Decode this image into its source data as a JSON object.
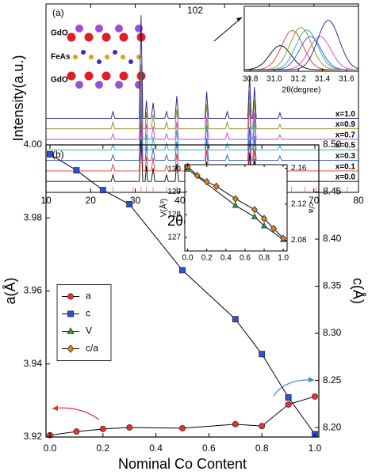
{
  "chart_data": [
    {
      "type": "line",
      "panel_label": "(a)",
      "x_label": "2θ(degree)",
      "y_label": "Intensity(a.u.)",
      "annotations": [
        "102"
      ],
      "structure_labels": [
        "GdO",
        "FeAs",
        "GdO"
      ],
      "xlim": [
        10,
        80
      ],
      "xticks": [
        10,
        20,
        30,
        40,
        50,
        60,
        70,
        80
      ],
      "x": [
        10,
        24.6,
        25,
        25.4,
        30.9,
        31.3,
        31.7,
        32.2,
        32.5,
        32.8,
        33.6,
        34,
        34.4,
        36.6,
        37,
        37.4,
        38.9,
        39.3,
        39.7,
        45.6,
        46,
        46.4,
        50.2,
        50.6,
        51,
        55.2,
        55.6,
        56,
        56.3,
        56.7,
        57.1,
        62,
        62.4,
        62.8,
        80
      ],
      "series": [
        {
          "name": "x=0.0",
          "color": "#000000",
          "values": [
            2,
            2,
            8,
            2,
            2,
            40,
            2,
            2,
            16,
            2,
            2,
            14,
            2,
            2,
            8,
            2,
            2,
            18,
            2,
            2,
            20,
            2,
            2,
            8,
            2,
            2,
            28,
            2,
            2,
            22,
            2,
            2,
            6,
            2,
            2
          ]
        },
        {
          "name": "x=0.1",
          "color": "#e8322e",
          "values": [
            2,
            2,
            8,
            2,
            2,
            45,
            2,
            2,
            15,
            2,
            2,
            14,
            2,
            2,
            7,
            2,
            2,
            18,
            2,
            2,
            21,
            2,
            2,
            8,
            2,
            2,
            30,
            2,
            2,
            22,
            2,
            2,
            6,
            2,
            2
          ]
        },
        {
          "name": "x=0.3",
          "color": "#2e4fd8",
          "values": [
            2,
            2,
            7,
            2,
            2,
            50,
            2,
            2,
            15,
            2,
            2,
            13,
            2,
            2,
            7,
            2,
            2,
            19,
            2,
            2,
            22,
            2,
            2,
            7,
            2,
            2,
            32,
            2,
            2,
            24,
            2,
            2,
            6,
            2,
            2
          ]
        },
        {
          "name": "x=0.5",
          "color": "#1aa8a8",
          "values": [
            2,
            2,
            7,
            2,
            2,
            50,
            2,
            2,
            16,
            2,
            2,
            14,
            2,
            2,
            8,
            2,
            2,
            20,
            2,
            2,
            24,
            2,
            2,
            8,
            2,
            2,
            45,
            2,
            2,
            30,
            2,
            2,
            6,
            2,
            2
          ]
        },
        {
          "name": "x=0.7",
          "color": "#d040d0",
          "values": [
            2,
            2,
            7,
            2,
            2,
            55,
            2,
            2,
            16,
            2,
            2,
            14,
            2,
            2,
            7,
            2,
            2,
            18,
            2,
            2,
            22,
            2,
            2,
            8,
            2,
            2,
            34,
            2,
            2,
            26,
            2,
            2,
            6,
            2,
            2
          ]
        },
        {
          "name": "x=0.9",
          "color": "#8a8a1a",
          "values": [
            2,
            2,
            8,
            2,
            2,
            60,
            2,
            2,
            17,
            2,
            2,
            15,
            2,
            2,
            8,
            2,
            2,
            20,
            2,
            2,
            24,
            2,
            2,
            8,
            2,
            2,
            36,
            2,
            2,
            28,
            2,
            2,
            6,
            2,
            2
          ]
        },
        {
          "name": "x=1.0",
          "color": "#1a1a8a",
          "values": [
            2,
            2,
            8,
            2,
            2,
            95,
            2,
            2,
            18,
            2,
            2,
            16,
            2,
            2,
            8,
            2,
            2,
            22,
            2,
            2,
            26,
            2,
            2,
            8,
            2,
            2,
            40,
            2,
            2,
            30,
            2,
            2,
            7,
            2,
            2
          ]
        }
      ],
      "reference_peaks": [
        25,
        29.5,
        31.3,
        32.5,
        34,
        37,
        39.3,
        41.5,
        46,
        48,
        50.6,
        52,
        55.6,
        56.7,
        58.5,
        62.4,
        65,
        68,
        70.5,
        73,
        75,
        77.5
      ],
      "reference_color": "#f08080"
    },
    {
      "type": "peak-profile",
      "x_label": "2θ(degree)",
      "xlim": [
        30.75,
        31.7
      ],
      "xticks": [
        30.8,
        {
          "value": 31,
          "label": "31.0"
        },
        31.2,
        31.4,
        31.6
      ],
      "peaks": [
        {
          "color": "#000000",
          "center": 31.05,
          "height": 0.4
        },
        {
          "color": "#e8322e",
          "center": 31.15,
          "height": 0.65
        },
        {
          "color": "#2e4fd8",
          "center": 31.3,
          "height": 0.55
        },
        {
          "color": "#1aa8a8",
          "center": 31.27,
          "height": 0.66
        },
        {
          "color": "#d040d0",
          "center": 31.38,
          "height": 0.55
        },
        {
          "color": "#8a8a1a",
          "center": 31.22,
          "height": 0.7
        },
        {
          "color": "#1a1a8a",
          "center": 31.45,
          "height": 0.82
        }
      ]
    },
    {
      "type": "line",
      "panel_label": "(b)",
      "x_label": "Nominal Co Content",
      "y_label": "a(Å)",
      "y2_label": "c(Å)",
      "legend": "center left",
      "line_color": "#000000",
      "xlim": [
        -0.015,
        1.015
      ],
      "xticks": [
        {
          "value": 0,
          "label": "0.0"
        },
        0.2,
        0.4,
        0.6,
        0.8,
        {
          "value": 1,
          "label": "1.0"
        }
      ],
      "ylim": [
        3.92,
        4.0
      ],
      "yticks": [
        3.92,
        3.94,
        3.96,
        3.98,
        {
          "value": 4,
          "label": "4.00"
        }
      ],
      "y2lim": [
        8.19,
        8.5
      ],
      "y2ticks": [
        {
          "value": 8.2,
          "label": "8.20"
        },
        8.25,
        {
          "value": 8.3,
          "label": "8.30"
        },
        8.35,
        {
          "value": 8.4,
          "label": "8.40"
        },
        8.45,
        {
          "value": 8.5,
          "label": "8.50"
        }
      ],
      "series": [
        {
          "name": "a",
          "color": "#e8322e",
          "marker": "circle",
          "x": [
            0,
            0.1,
            0.2,
            0.3,
            0.5,
            0.7,
            0.8,
            0.9,
            1.0
          ],
          "values": [
            3.9205,
            3.9215,
            3.9222,
            3.9226,
            3.9224,
            3.9235,
            3.923,
            3.9289,
            3.9311
          ]
        },
        {
          "name": "c",
          "color": "#2e4fd8",
          "marker": "square",
          "axis": "y2",
          "x": [
            0,
            0.1,
            0.2,
            0.3,
            0.5,
            0.7,
            0.8,
            0.9,
            1.0
          ],
          "values": [
            8.49,
            8.473,
            8.452,
            8.437,
            8.367,
            8.315,
            8.278,
            8.232,
            8.193
          ]
        }
      ]
    },
    {
      "type": "line",
      "y_label": "V(Å³)",
      "y2_label": "c/a",
      "xlim": [
        -0.03,
        1.04
      ],
      "xticks": [
        {
          "value": 0,
          "label": "0.0"
        },
        0.2,
        0.4,
        0.6,
        0.8,
        {
          "value": 1,
          "label": "1.0"
        }
      ],
      "ylim": [
        126.4,
        130.2
      ],
      "yticks": [
        127,
        128,
        129,
        130
      ],
      "y2lim": [
        2.068,
        2.164
      ],
      "y2ticks": [
        2.08,
        2.12,
        2.16
      ],
      "series": [
        {
          "name": "V",
          "color": "#3a9a3a",
          "marker": "triangle",
          "x": [
            0,
            0.5,
            0.7,
            0.8,
            1.0
          ],
          "values": [
            130.0,
            128.4,
            127.9,
            127.5,
            126.9
          ]
        },
        {
          "name": "c/a",
          "color": "#e0801a",
          "marker": "diamond",
          "axis": "y2",
          "x": [
            0,
            0.1,
            0.2,
            0.3,
            0.5,
            0.7,
            0.8,
            0.9,
            1.0
          ],
          "values": [
            2.162,
            2.152,
            2.145,
            2.14,
            2.126,
            2.114,
            2.104,
            2.093,
            2.082
          ]
        }
      ]
    }
  ]
}
